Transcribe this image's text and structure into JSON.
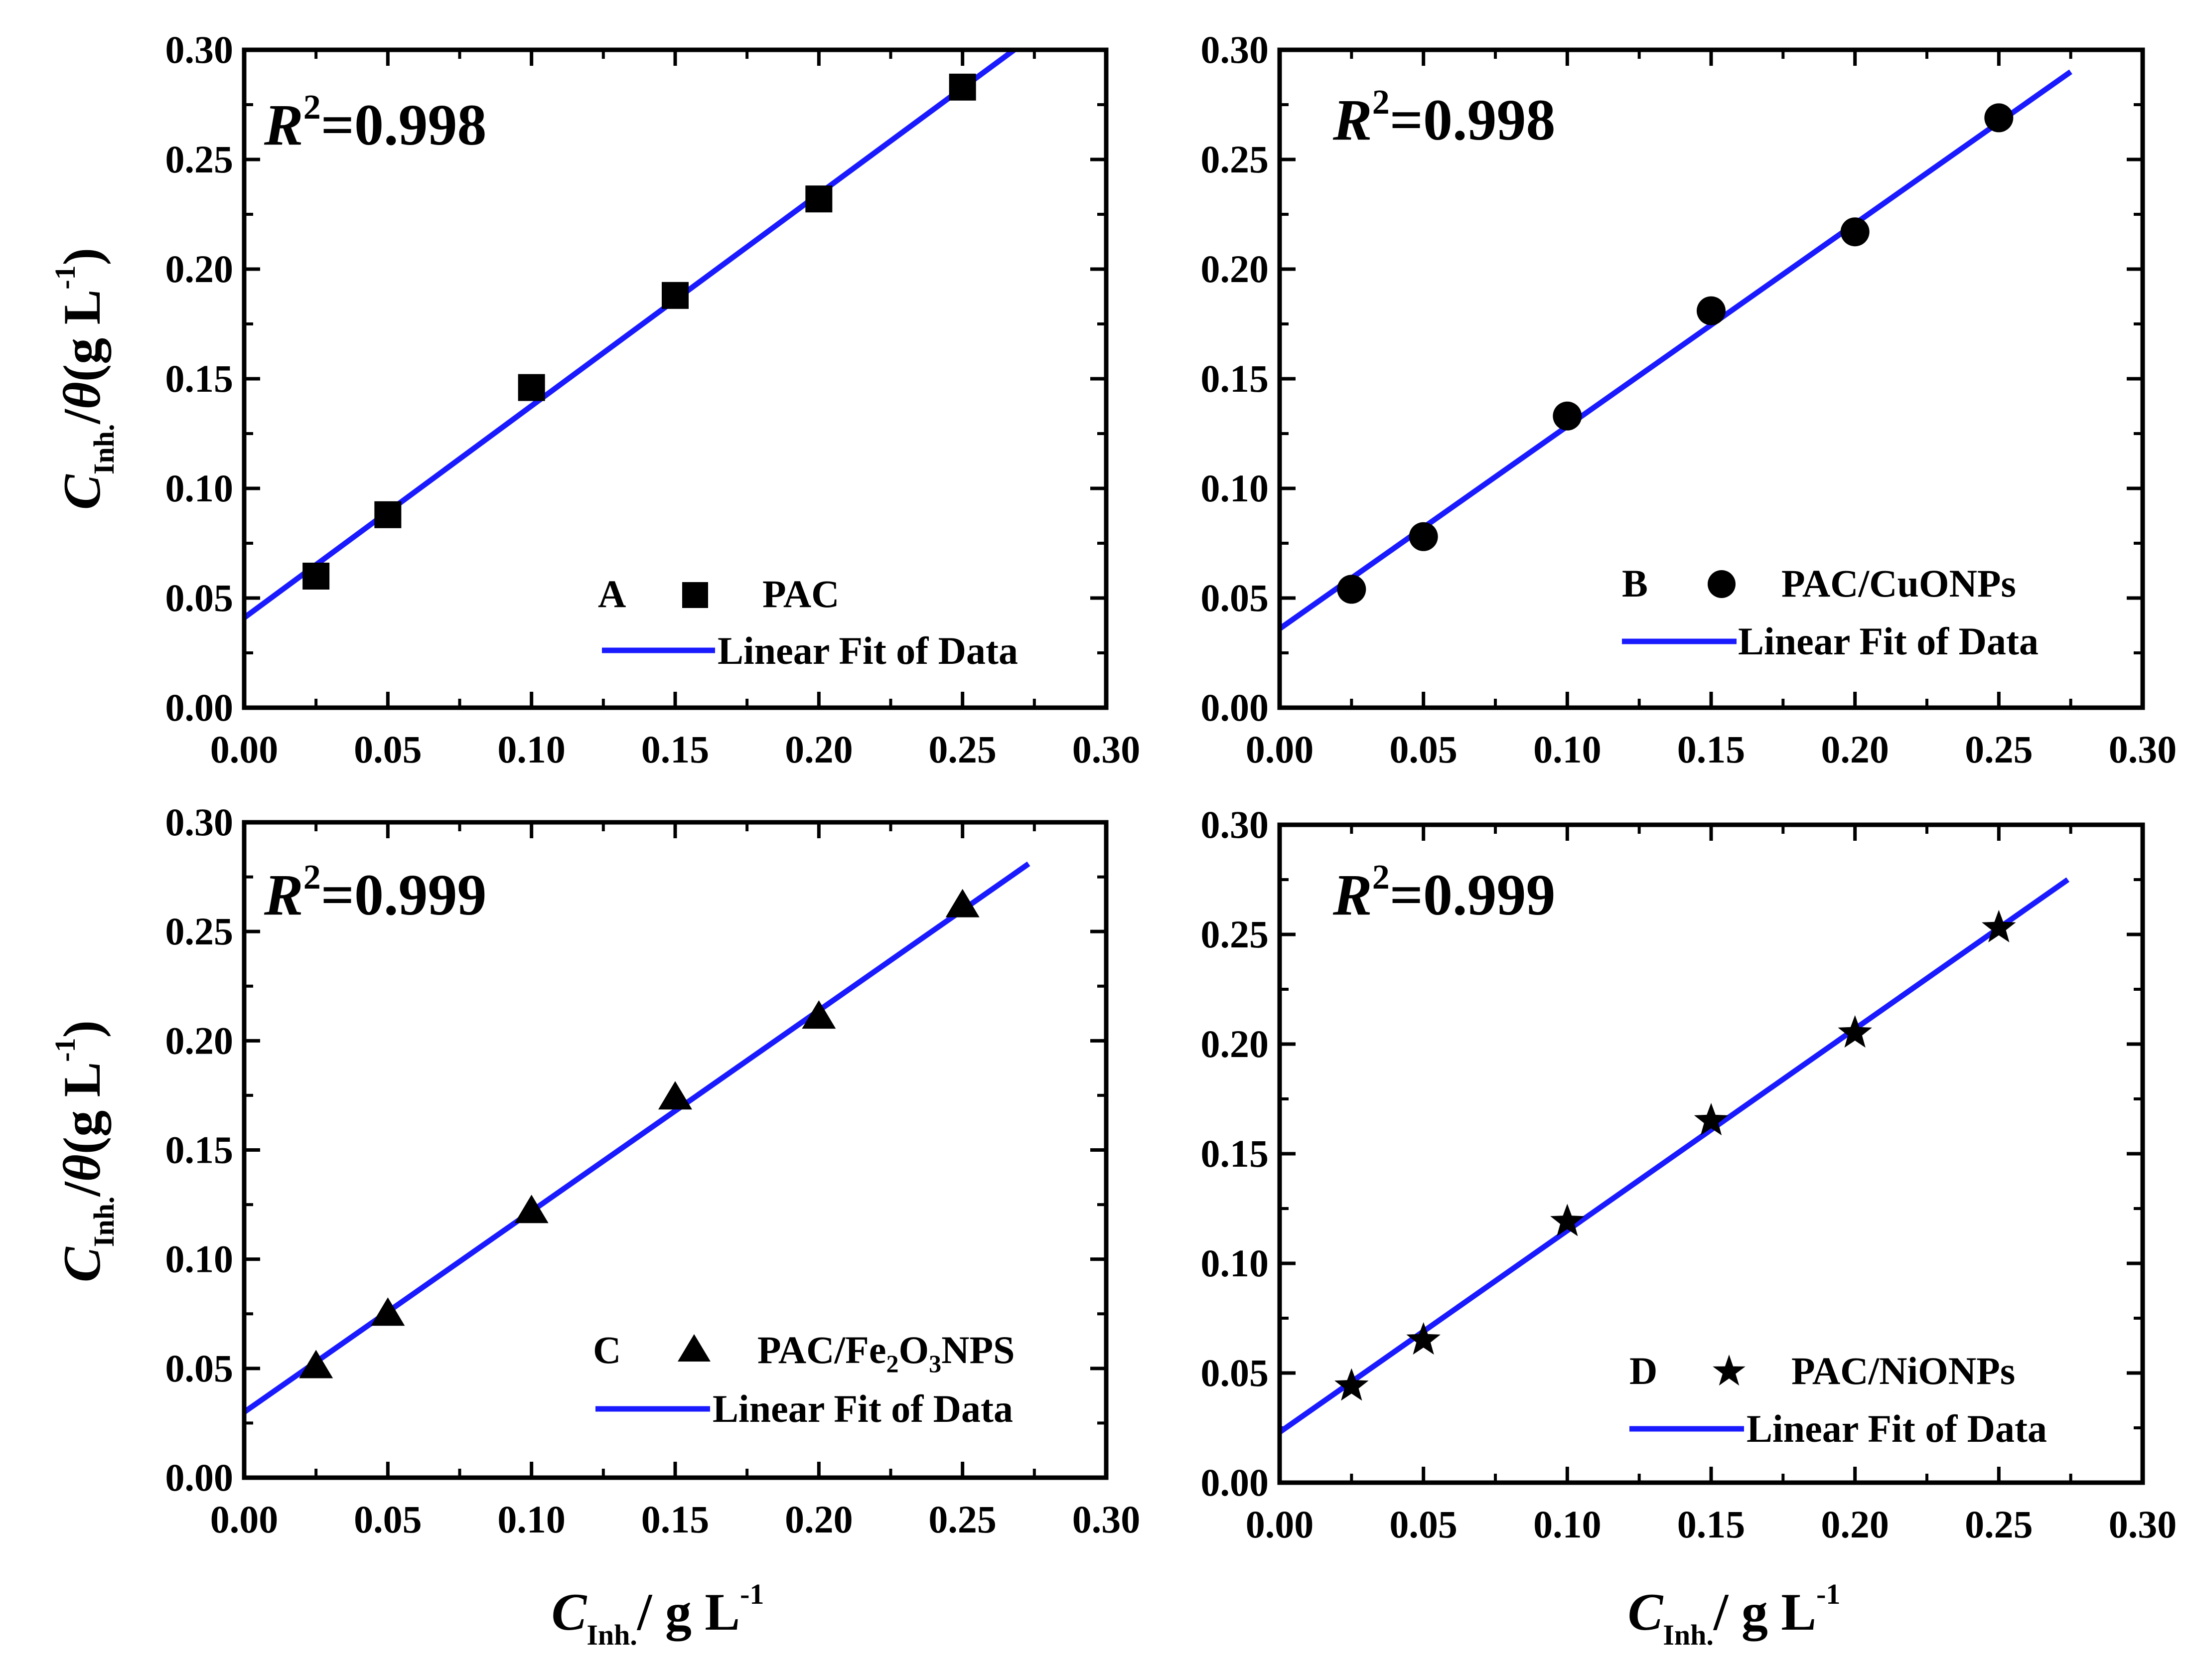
{
  "chart_data": [
    {
      "type": "scatter",
      "panel": "A",
      "marker": "square",
      "r2_prefix": "R",
      "r2_exp": "2",
      "r2_value": "=0.998",
      "legend_series": "PAC",
      "legend_fit": "Linear Fit of Data",
      "x": [
        0.025,
        0.05,
        0.1,
        0.15,
        0.2,
        0.25
      ],
      "y": [
        0.06,
        0.088,
        0.146,
        0.188,
        0.232,
        0.283
      ],
      "fit": {
        "x0": 0.0,
        "y0": 0.041,
        "x1": 0.268,
        "y1": 0.3
      },
      "xlim": [
        0,
        0.3
      ],
      "ylim": [
        0,
        0.3
      ],
      "xticks": [
        "0.00",
        "0.05",
        "0.10",
        "0.15",
        "0.20",
        "0.25",
        "0.30"
      ],
      "yticks": [
        "0.00",
        "0.05",
        "0.10",
        "0.15",
        "0.20",
        "0.25",
        "0.30"
      ]
    },
    {
      "type": "scatter",
      "panel": "B",
      "marker": "circle",
      "r2_prefix": "R",
      "r2_exp": "2",
      "r2_value": "=0.998",
      "legend_series": "PAC/CuONPs",
      "legend_fit": "Linear Fit of Data",
      "x": [
        0.025,
        0.05,
        0.1,
        0.15,
        0.2,
        0.25
      ],
      "y": [
        0.054,
        0.078,
        0.133,
        0.181,
        0.217,
        0.269
      ],
      "fit": {
        "x0": 0.0,
        "y0": 0.036,
        "x1": 0.275,
        "y1": 0.29
      },
      "xlim": [
        0,
        0.3
      ],
      "ylim": [
        0,
        0.3
      ],
      "xticks": [
        "0.00",
        "0.05",
        "0.10",
        "0.15",
        "0.20",
        "0.25",
        "0.30"
      ],
      "yticks": [
        "0.00",
        "0.05",
        "0.10",
        "0.15",
        "0.20",
        "0.25",
        "0.30"
      ]
    },
    {
      "type": "scatter",
      "panel": "C",
      "marker": "triangle",
      "r2_prefix": "R",
      "r2_exp": "2",
      "r2_value": "=0.999",
      "legend_series_main": "PAC/Fe",
      "legend_series_sub1": "2",
      "legend_series_mid": "O",
      "legend_series_sub2": "3",
      "legend_series_end": "NPS",
      "legend_fit": "Linear Fit of Data",
      "x": [
        0.025,
        0.05,
        0.1,
        0.15,
        0.2,
        0.25
      ],
      "y": [
        0.051,
        0.075,
        0.122,
        0.174,
        0.211,
        0.262
      ],
      "fit": {
        "x0": 0.0,
        "y0": 0.03,
        "x1": 0.273,
        "y1": 0.281
      },
      "xlim": [
        0,
        0.3
      ],
      "ylim": [
        0,
        0.3
      ],
      "xticks": [
        "0.00",
        "0.05",
        "0.10",
        "0.15",
        "0.20",
        "0.25",
        "0.30"
      ],
      "yticks": [
        "0.00",
        "0.05",
        "0.10",
        "0.15",
        "0.20",
        "0.25",
        "0.30"
      ]
    },
    {
      "type": "scatter",
      "panel": "D",
      "marker": "star",
      "r2_prefix": "R",
      "r2_exp": "2",
      "r2_value": "=0.999",
      "legend_series": "PAC/NiONPs",
      "legend_fit": "Linear Fit of Data",
      "x": [
        0.025,
        0.05,
        0.1,
        0.15,
        0.2,
        0.25
      ],
      "y": [
        0.044,
        0.065,
        0.119,
        0.165,
        0.205,
        0.253
      ],
      "fit": {
        "x0": 0.0,
        "y0": 0.023,
        "x1": 0.274,
        "y1": 0.275
      },
      "xlim": [
        0,
        0.3
      ],
      "ylim": [
        0,
        0.3
      ],
      "xticks": [
        "0.00",
        "0.05",
        "0.10",
        "0.15",
        "0.20",
        "0.25",
        "0.30"
      ],
      "yticks": [
        "0.00",
        "0.05",
        "0.10",
        "0.15",
        "0.20",
        "0.25",
        "0.30"
      ]
    }
  ],
  "axis_titles": {
    "y_main": "C",
    "y_sub": "Inh.",
    "y_rest_slash": "/",
    "y_theta": "θ",
    "y_unit": "(g L",
    "y_exp": "-1",
    "y_close": ")",
    "x_main": "C",
    "x_sub": "Inh.",
    "x_unit": "/ g L",
    "x_exp": "-1"
  },
  "colors": {
    "fit_line": "#1a1aff",
    "marker": "#000000",
    "axis": "#000000",
    "background": "#ffffff"
  }
}
